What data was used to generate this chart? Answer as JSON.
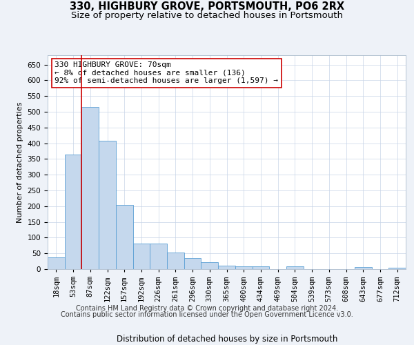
{
  "title1": "330, HIGHBURY GROVE, PORTSMOUTH, PO6 2RX",
  "title2": "Size of property relative to detached houses in Portsmouth",
  "xlabel": "Distribution of detached houses by size in Portsmouth",
  "ylabel": "Number of detached properties",
  "categories": [
    "18sqm",
    "53sqm",
    "87sqm",
    "122sqm",
    "157sqm",
    "192sqm",
    "226sqm",
    "261sqm",
    "296sqm",
    "330sqm",
    "365sqm",
    "400sqm",
    "434sqm",
    "469sqm",
    "504sqm",
    "539sqm",
    "573sqm",
    "608sqm",
    "643sqm",
    "677sqm",
    "712sqm"
  ],
  "values": [
    37,
    365,
    515,
    408,
    204,
    82,
    82,
    52,
    35,
    22,
    12,
    9,
    9,
    1,
    9,
    1,
    1,
    1,
    6,
    1,
    5
  ],
  "bar_color": "#c5d8ed",
  "bar_edge_color": "#5a9fd4",
  "vline_color": "#cc0000",
  "annotation_text": "330 HIGHBURY GROVE: 70sqm\n← 8% of detached houses are smaller (136)\n92% of semi-detached houses are larger (1,597) →",
  "annotation_box_color": "#ffffff",
  "annotation_box_edge": "#cc0000",
  "ylim": [
    0,
    680
  ],
  "yticks": [
    0,
    50,
    100,
    150,
    200,
    250,
    300,
    350,
    400,
    450,
    500,
    550,
    600,
    650
  ],
  "footer1": "Contains HM Land Registry data © Crown copyright and database right 2024.",
  "footer2": "Contains public sector information licensed under the Open Government Licence v3.0.",
  "bg_color": "#eef2f8",
  "plot_bg_color": "#ffffff",
  "grid_color": "#c8d4e8",
  "title1_fontsize": 10.5,
  "title2_fontsize": 9.5,
  "xlabel_fontsize": 8.5,
  "ylabel_fontsize": 8,
  "tick_fontsize": 7.5,
  "annotation_fontsize": 8,
  "footer_fontsize": 7
}
